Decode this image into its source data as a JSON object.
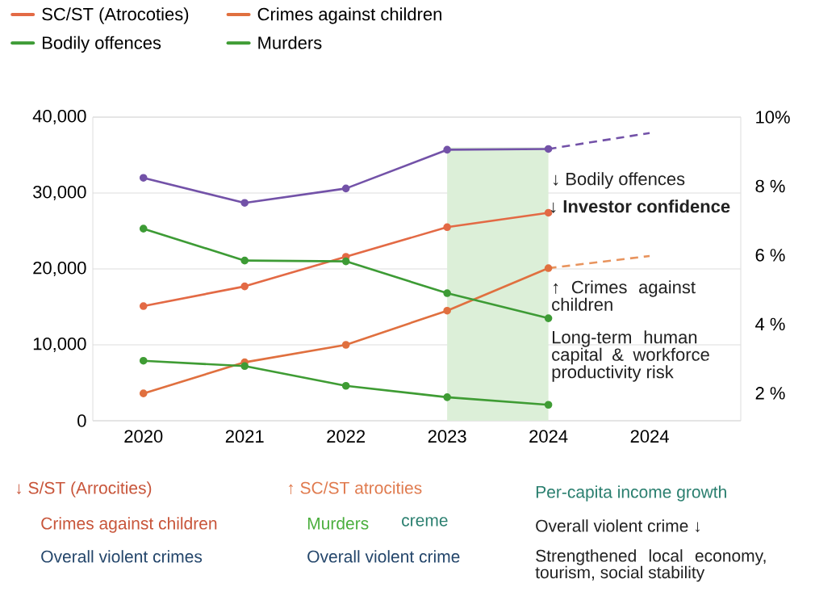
{
  "chart_data": {
    "type": "line",
    "categories": [
      "2020",
      "2021",
      "2022",
      "2023",
      "2024",
      "2024"
    ],
    "ylim": [
      0,
      40000
    ],
    "yticks": [
      {
        "value": 0,
        "label": "0"
      },
      {
        "value": 10000,
        "label": "10,000"
      },
      {
        "value": 20000,
        "label": "20,000"
      },
      {
        "value": 30000,
        "label": "30,000"
      },
      {
        "value": 40000,
        "label": "40,000"
      }
    ],
    "y2lim": [
      1.2,
      10
    ],
    "y2ticks": [
      {
        "value": 2,
        "label": "2 %"
      },
      {
        "value": 4,
        "label": "4 %"
      },
      {
        "value": 6,
        "label": "6 %"
      },
      {
        "value": 8,
        "label": "8 %"
      },
      {
        "value": 10,
        "label": "10%"
      }
    ],
    "grid": "y",
    "legend": "top",
    "series": [
      {
        "type": "area",
        "color": "#dcefd8",
        "values": [
          null,
          null,
          null,
          36000,
          36000,
          null
        ]
      },
      {
        "name": "SC/ST (Atrocoties)",
        "color": "#e36a45",
        "marker": "circle",
        "line_style": "solid",
        "values": [
          15100,
          17700,
          21600,
          25500,
          27400,
          null
        ]
      },
      {
        "name": "Crimes against children",
        "color": "#e0703f",
        "marker": "circle",
        "line_style": "solid",
        "values": [
          3600,
          7700,
          10000,
          14500,
          20100,
          null
        ]
      },
      {
        "name": "Bodily offences",
        "color": "#3d9b35",
        "marker": "circle",
        "line_style": "solid",
        "values": [
          25300,
          21100,
          21000,
          16800,
          13500,
          null
        ]
      },
      {
        "name": "Murders",
        "color": "#3f9c34",
        "marker": "circle",
        "line_style": "solid",
        "values": [
          7900,
          7200,
          4600,
          3100,
          2100,
          null
        ]
      },
      {
        "color": "#7352a8",
        "marker": "circle",
        "line_style": "solid",
        "values": [
          32000,
          28700,
          30600,
          35700,
          35800,
          null
        ]
      },
      {
        "color": "#7352a8",
        "marker": "none",
        "line_style": "dashed",
        "values": [
          null,
          null,
          null,
          null,
          35800,
          37900
        ]
      },
      {
        "color": "#e8945e",
        "marker": "none",
        "line_style": "dashed",
        "values": [
          null,
          null,
          null,
          null,
          20100,
          21700
        ]
      }
    ],
    "annotations": [
      "↓ Bodily offences",
      "↓ Investor confidence",
      "↑ Crimes against children",
      "Long-term  human capital & workforce productivity risk",
      "↓ S/ST (Arrocities)",
      "↑ SC/ST atrocities",
      "Per-capita income growth",
      "Crimes against children",
      "Murders",
      "creme",
      "Overall violent crime ↓",
      "Overall violent crimes",
      "Overall violent crime",
      "Strengthened local economy, tourism, social stability"
    ]
  }
}
